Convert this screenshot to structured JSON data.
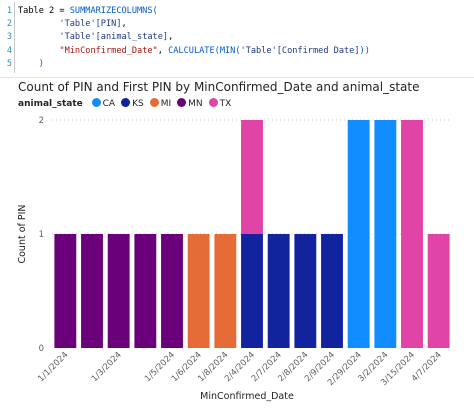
{
  "code": {
    "lines": [
      {
        "n": "1",
        "tokens": [
          {
            "t": "Table 2 = ",
            "c": "plain"
          },
          {
            "t": "SUMMARIZECOLUMNS(",
            "c": "fn"
          }
        ]
      },
      {
        "n": "2",
        "tokens": [
          {
            "t": "        ",
            "c": "plain"
          },
          {
            "t": "'Table'[PIN]",
            "c": "col"
          },
          {
            "t": ",",
            "c": "plain"
          }
        ]
      },
      {
        "n": "3",
        "tokens": [
          {
            "t": "        ",
            "c": "plain"
          },
          {
            "t": "'Table'[animal_state]",
            "c": "col"
          },
          {
            "t": ",",
            "c": "plain"
          }
        ]
      },
      {
        "n": "4",
        "tokens": [
          {
            "t": "        ",
            "c": "plain"
          },
          {
            "t": "\"MinConfirmed_Date\"",
            "c": "str"
          },
          {
            "t": ", ",
            "c": "plain"
          },
          {
            "t": "CALCULATE(",
            "c": "fn"
          },
          {
            "t": "MIN(",
            "c": "fn"
          },
          {
            "t": "'Table'[Confirmed Date]",
            "c": "col"
          },
          {
            "t": "))",
            "c": "fn"
          }
        ]
      },
      {
        "n": "5",
        "tokens": [
          {
            "t": "    ",
            "c": "plain"
          },
          {
            "t": ")",
            "c": "fn"
          }
        ]
      }
    ]
  },
  "chart_data": {
    "type": "bar",
    "stacked": true,
    "title": "Count of PIN and First PIN by MinConfirmed_Date and animal_state",
    "xlabel": "MinConfirmed_Date",
    "ylabel": "Count of PIN",
    "ylim": [
      0,
      2
    ],
    "yticks": [
      0,
      1,
      2
    ],
    "grid": true,
    "legend": {
      "title": "animal_state",
      "position": "top-left",
      "items": [
        {
          "name": "CA",
          "color": "#118dff"
        },
        {
          "name": "KS",
          "color": "#12239e"
        },
        {
          "name": "MI",
          "color": "#e66c37"
        },
        {
          "name": "MN",
          "color": "#6b007b"
        },
        {
          "name": "TX",
          "color": "#e044a7"
        }
      ]
    },
    "categories": [
      "1/1/2024",
      "",
      "1/3/2024",
      "",
      "1/5/2024",
      "1/6/2024",
      "1/8/2024",
      "2/4/2024",
      "2/7/2024",
      "2/8/2024",
      "2/9/2024",
      "2/29/2024",
      "3/2/2024",
      "3/15/2024",
      "4/7/2024"
    ],
    "series": [
      {
        "name": "MN",
        "values": [
          1,
          1,
          1,
          1,
          1,
          0,
          0,
          0,
          0,
          0,
          0,
          0,
          0,
          0,
          0
        ]
      },
      {
        "name": "MI",
        "values": [
          0,
          0,
          0,
          0,
          0,
          1,
          1,
          0,
          0,
          0,
          0,
          0,
          0,
          0,
          0
        ]
      },
      {
        "name": "KS",
        "values": [
          0,
          0,
          0,
          0,
          0,
          0,
          0,
          1,
          1,
          1,
          1,
          0,
          0,
          0,
          0
        ]
      },
      {
        "name": "TX",
        "values": [
          0,
          0,
          0,
          0,
          0,
          0,
          0,
          1,
          0,
          0,
          0,
          0,
          0,
          2,
          1
        ]
      },
      {
        "name": "CA",
        "values": [
          0,
          0,
          0,
          0,
          0,
          0,
          0,
          0,
          0,
          0,
          0,
          2,
          2,
          0,
          0
        ]
      }
    ]
  }
}
